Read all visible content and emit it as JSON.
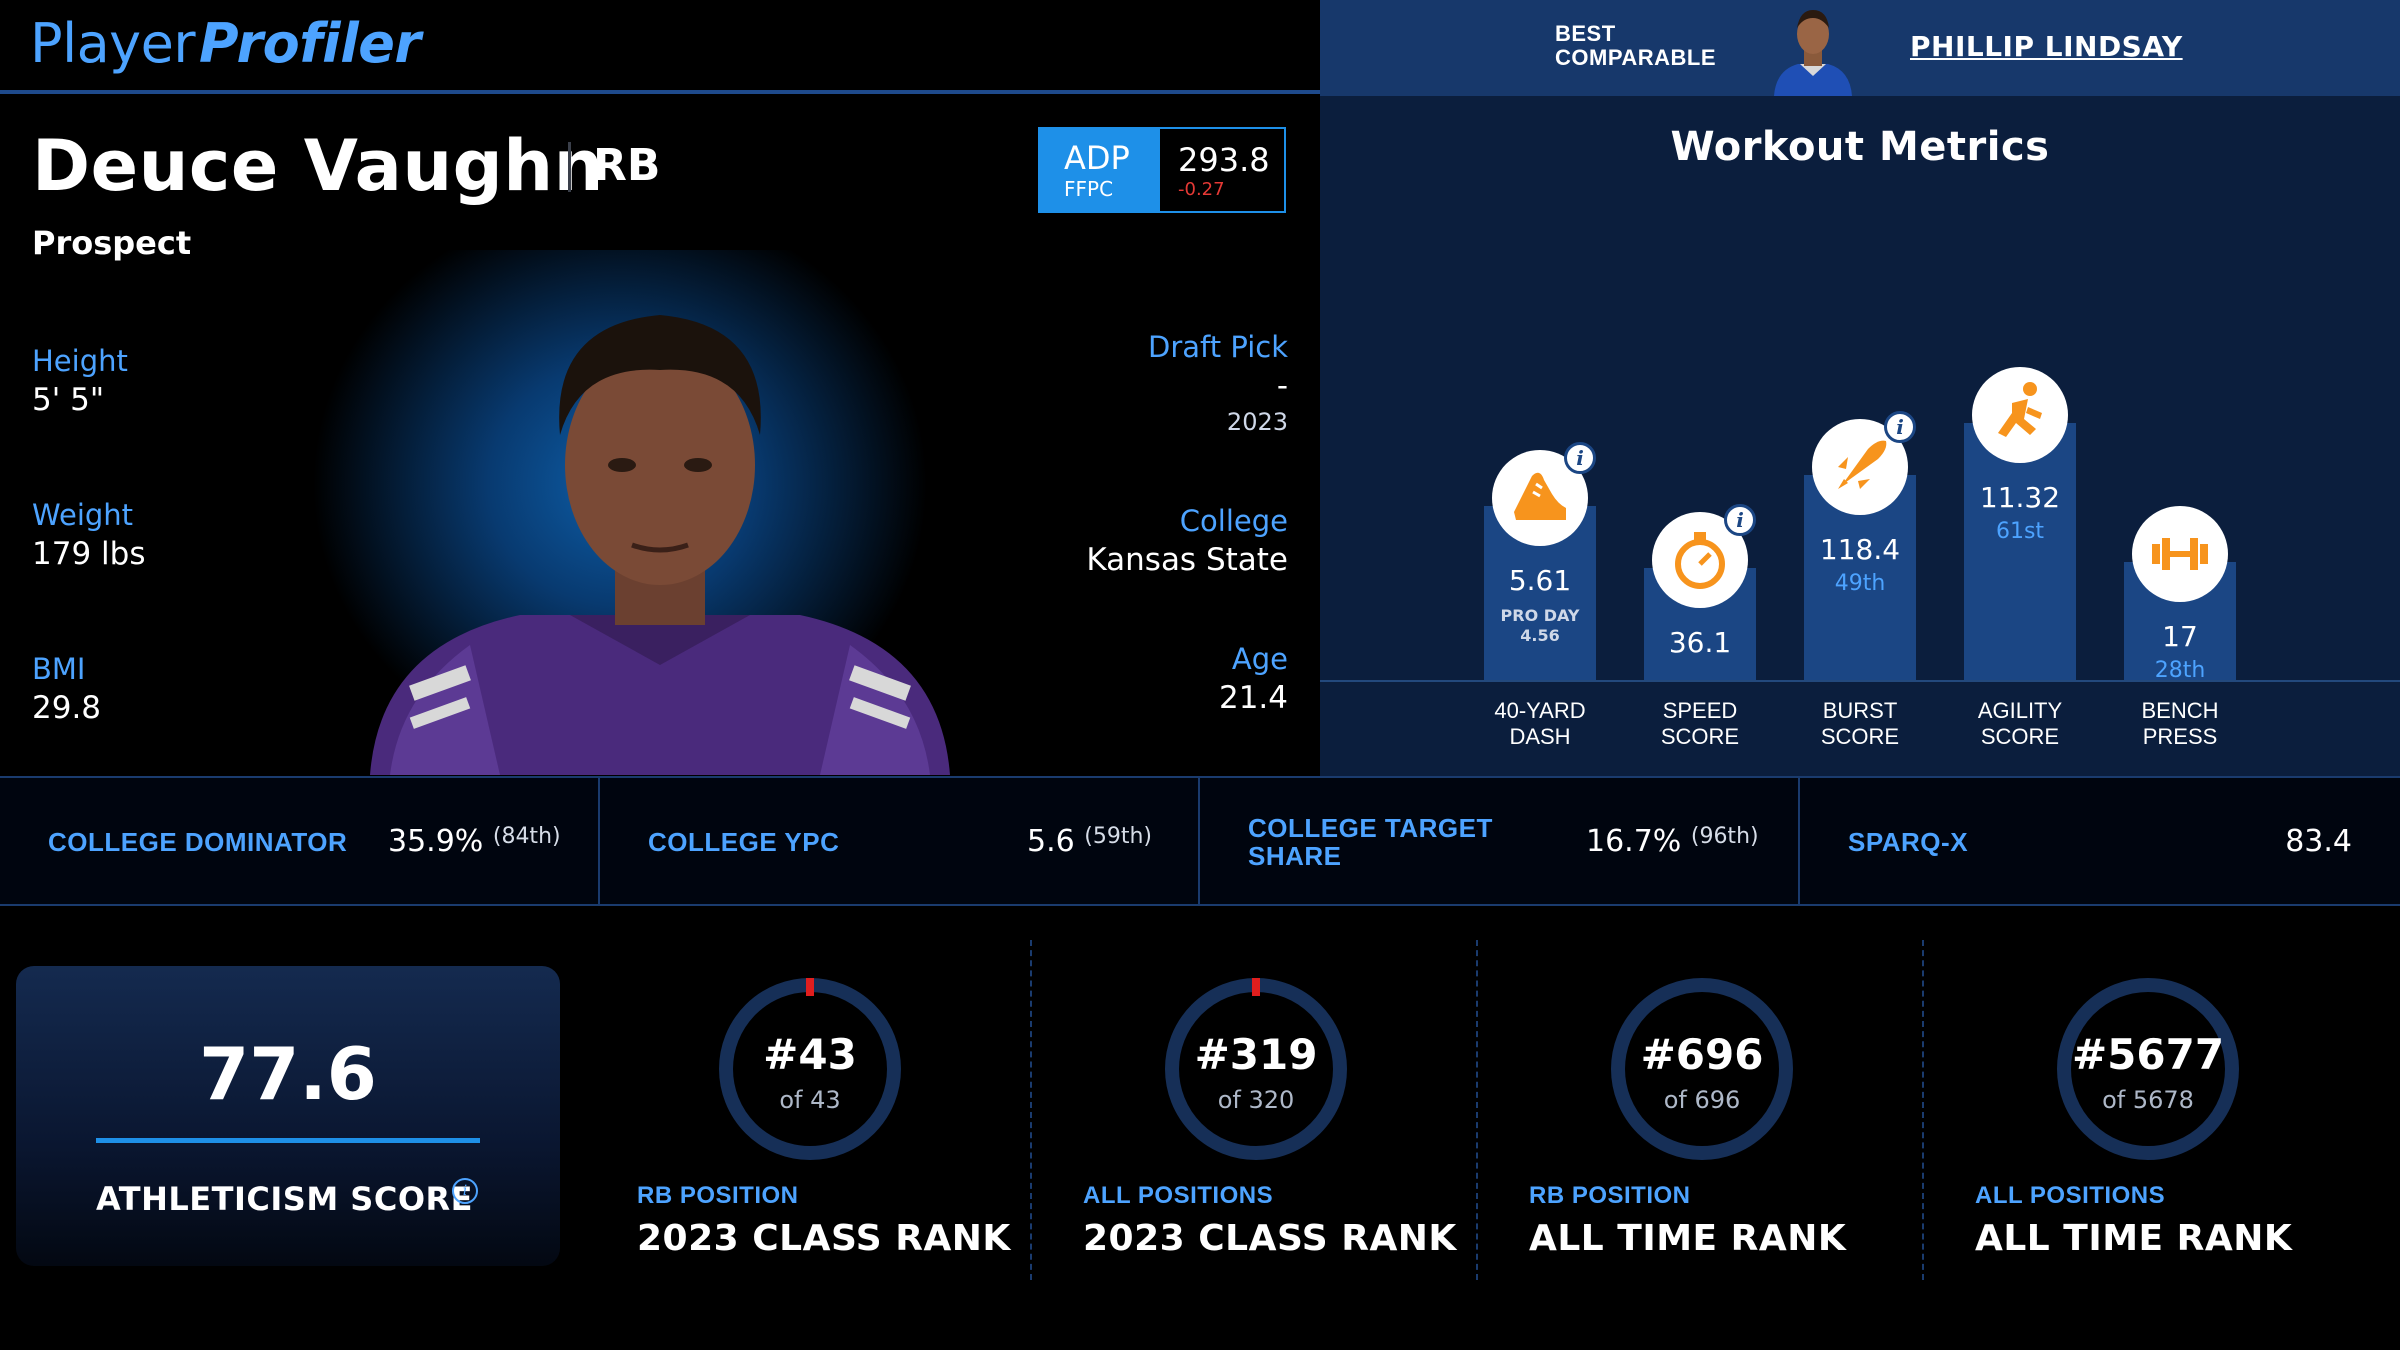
{
  "brand": {
    "logo_light": "Player",
    "logo_bold": "Profiler"
  },
  "comparable": {
    "label_line1": "BEST",
    "label_line2": "COMPARABLE",
    "name": "PHILLIP LINDSAY"
  },
  "player": {
    "name": "Deuce Vaughn",
    "position": "RB",
    "status": "Prospect",
    "height_label": "Height",
    "height": "5' 5\"",
    "weight_label": "Weight",
    "weight": "179 lbs",
    "bmi_label": "BMI",
    "bmi": "29.8",
    "draft_label": "Draft Pick",
    "draft_pick": "-",
    "draft_year": "2023",
    "college_label": "College",
    "college": "Kansas State",
    "age_label": "Age",
    "age": "21.4"
  },
  "adp": {
    "label": "ADP",
    "source": "FFPC",
    "value": "293.8",
    "change": "-0.27"
  },
  "workout": {
    "title": "Workout Metrics",
    "metrics": [
      {
        "label1": "40-YARD",
        "label2": "DASH",
        "value": "5.61",
        "note1": "PRO DAY",
        "note2": "4.56",
        "icon": "shoe-icon",
        "info": true,
        "level": 0.56
      },
      {
        "label1": "SPEED",
        "label2": "SCORE",
        "value": "36.1",
        "icon": "stopwatch-icon",
        "info": true,
        "level": 0.36
      },
      {
        "label1": "BURST",
        "label2": "SCORE",
        "value": "118.4",
        "pct": "49th",
        "icon": "rocket-icon",
        "info": true,
        "level": 0.66
      },
      {
        "label1": "AGILITY",
        "label2": "SCORE",
        "value": "11.32",
        "pct": "61st",
        "icon": "runner-icon",
        "info": false,
        "level": 0.83
      },
      {
        "label1": "BENCH",
        "label2": "PRESS",
        "value": "17",
        "pct": "28th",
        "icon": "dumbbell-icon",
        "info": false,
        "level": 0.38
      }
    ]
  },
  "stats": [
    {
      "label": "COLLEGE DOMINATOR",
      "value": "35.9%",
      "pct": "(84th)"
    },
    {
      "label": "COLLEGE YPC",
      "value": "5.6",
      "pct": "(59th)"
    },
    {
      "label1": "COLLEGE TARGET",
      "label2": "SHARE",
      "value": "16.7%",
      "pct": "(96th)"
    },
    {
      "label": "SPARQ-X",
      "value": "83.4",
      "pct": ""
    }
  ],
  "athleticism": {
    "score": "77.6",
    "label": "ATHLETICISM SCORE",
    "info_icon": "i"
  },
  "ranks": [
    {
      "rank": "#43",
      "of": "of 43",
      "category": "RB POSITION",
      "title": "2023 CLASS RANK"
    },
    {
      "rank": "#319",
      "of": "of 320",
      "category": "ALL POSITIONS",
      "title": "2023 CLASS RANK"
    },
    {
      "rank": "#696",
      "of": "of 696",
      "category": "RB POSITION",
      "title": "ALL TIME RANK"
    },
    {
      "rank": "#5677",
      "of": "of 5678",
      "category": "ALL POSITIONS",
      "title": "ALL TIME RANK"
    }
  ],
  "colors": {
    "accent": "#4da3ff",
    "adp_blue": "#1e90e8",
    "panel": "#0b1e3d",
    "bar": "#1b4684",
    "icon_orange": "#f7941d",
    "ring_mark": "#e01e1e"
  }
}
